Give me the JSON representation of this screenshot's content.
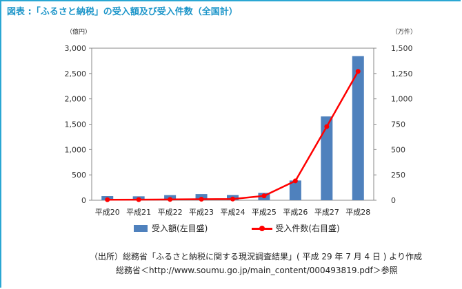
{
  "title": "図表 :「ふるさと納税」の受入額及び受入件数（全国計）",
  "left_unit": "（億円）",
  "right_unit": "（万件）",
  "source_line1": "（出所）総務省「ふるさと納税に関する現況調査結果」( 平成 29 年 7 月 4 日 ) より作成",
  "source_line2": "総務省＜http://www.soumu.go.jp/main_content/000493819.pdf＞参照",
  "colors": {
    "bar": "#4f81bd",
    "line": "#ff0000",
    "accent": "#2aa7d3"
  },
  "chart_data": {
    "type": "bar",
    "categories": [
      "平成20",
      "平成21",
      "平成22",
      "平成23",
      "平成24",
      "平成25",
      "平成26",
      "平成27",
      "平成28"
    ],
    "series": [
      {
        "name": "受入額(左目盛)",
        "type": "bar",
        "axis": "left",
        "values": [
          81,
          77,
          102,
          121,
          104,
          146,
          389,
          1653,
          2844
        ]
      },
      {
        "name": "受入件数(右目盛)",
        "type": "line",
        "axis": "right",
        "values": [
          5,
          6,
          8,
          10,
          12,
          43,
          191,
          726,
          1271
        ]
      }
    ],
    "y_left": {
      "min": 0,
      "max": 3000,
      "ticks": [
        "0",
        "500",
        "1,000",
        "1,500",
        "2,000",
        "2,500",
        "3,000"
      ]
    },
    "y_right": {
      "min": 0,
      "max": 1500,
      "ticks": [
        "0",
        "250",
        "500",
        "750",
        "1,000",
        "1,250",
        "1,500"
      ]
    },
    "legend_position": "bottom",
    "grid": false
  }
}
